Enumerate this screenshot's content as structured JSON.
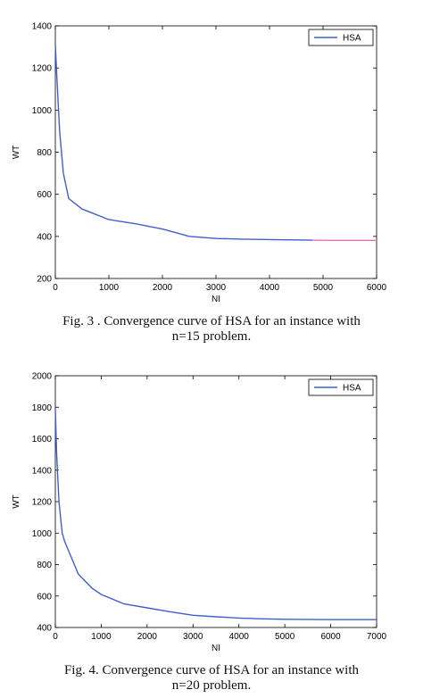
{
  "chart_data": [
    {
      "type": "line",
      "xlabel": "NI",
      "ylabel": "WT",
      "xlim": [
        0,
        6000
      ],
      "ylim": [
        200,
        1400
      ],
      "xticks": [
        "0",
        "1000",
        "2000",
        "3000",
        "4000",
        "5000",
        "6000"
      ],
      "yticks": [
        "200",
        "400",
        "600",
        "800",
        "1000",
        "1200",
        "1400"
      ],
      "legend_position": "top-right",
      "grid": false,
      "series": [
        {
          "name": "HSA",
          "color": "#3f5fd0",
          "x": [
            0,
            30,
            80,
            150,
            250,
            500,
            1000,
            1500,
            2000,
            2500,
            3000,
            3500,
            4000,
            4500,
            4800
          ],
          "y": [
            1310,
            1150,
            900,
            700,
            580,
            530,
            480,
            460,
            435,
            400,
            390,
            387,
            385,
            383,
            382
          ]
        },
        {
          "name": "",
          "color": "#e070b8",
          "x": [
            4800,
            5200,
            5600,
            6000
          ],
          "y": [
            382,
            381,
            381,
            381
          ]
        }
      ]
    },
    {
      "type": "line",
      "xlabel": "NI",
      "ylabel": "WT",
      "xlim": [
        0,
        7000
      ],
      "ylim": [
        400,
        2000
      ],
      "xticks": [
        "0",
        "1000",
        "2000",
        "3000",
        "4000",
        "5000",
        "6000",
        "7000"
      ],
      "yticks": [
        "400",
        "600",
        "800",
        "1000",
        "1200",
        "1400",
        "1600",
        "1800",
        "2000"
      ],
      "legend_position": "top-right",
      "grid": false,
      "series": [
        {
          "name": "HSA",
          "color": "#3f5fd0",
          "x": [
            0,
            30,
            80,
            150,
            200,
            500,
            800,
            1000,
            1500,
            2000,
            2500,
            3000,
            3500,
            4000,
            4500,
            5000,
            6000,
            7000
          ],
          "y": [
            1790,
            1500,
            1200,
            1000,
            950,
            740,
            650,
            610,
            550,
            525,
            500,
            478,
            468,
            460,
            455,
            452,
            450,
            450
          ]
        }
      ]
    }
  ],
  "captions": [
    {
      "line1": "Fig. 3 .    Convergence curve of HSA for an instance with",
      "line2": "n=15 problem."
    },
    {
      "line1": "Fig. 4.    Convergence curve of HSA for an instance with",
      "line2": "n=20 problem."
    }
  ]
}
